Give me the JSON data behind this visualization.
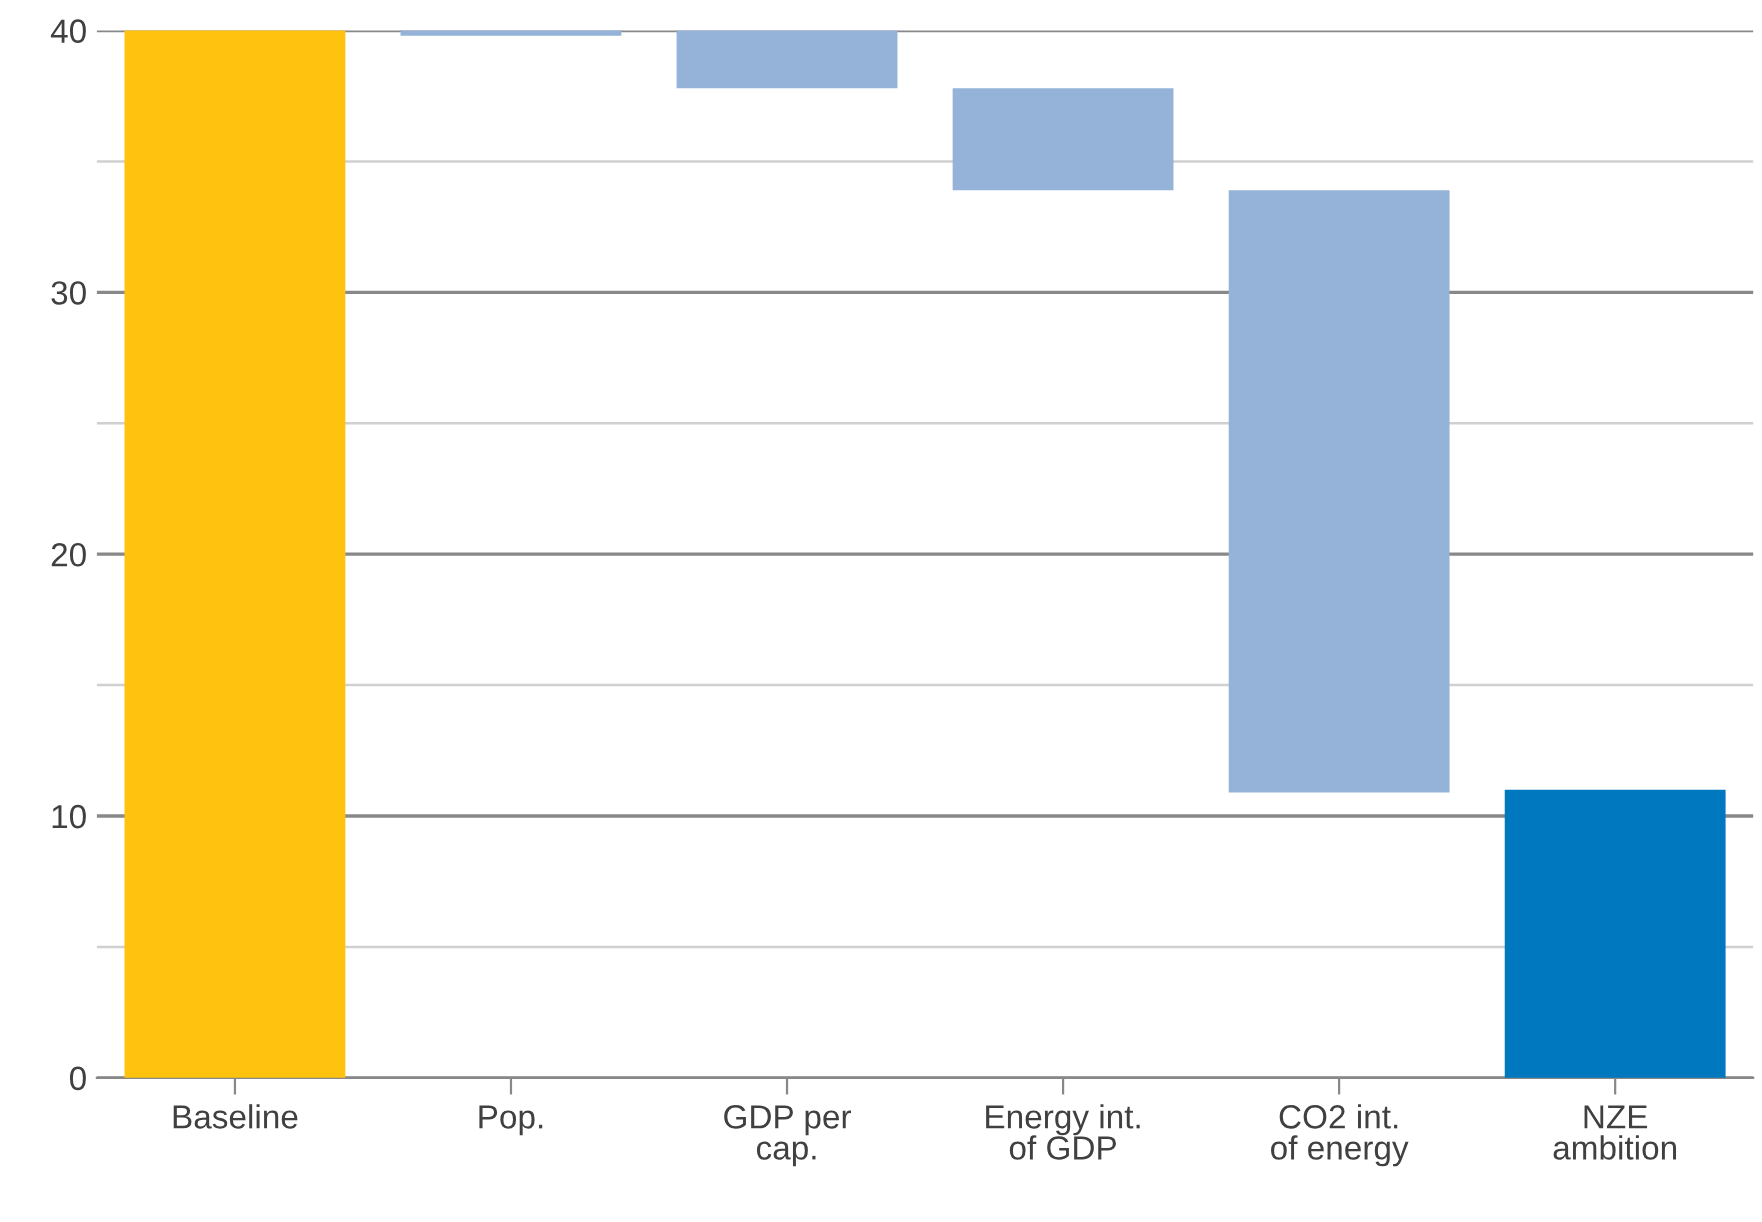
{
  "chart_data": {
    "type": "bar",
    "categories": [
      "Baseline",
      "Pop.",
      "GDP per\ncap.",
      "Energy int.\nof GDP",
      "CO2 int.\nof energy",
      "NZE\nambition"
    ],
    "values": [
      40,
      -0.2,
      -2.2,
      -3.9,
      -23.0,
      11.0
    ],
    "base": [
      0,
      40,
      40,
      37.8,
      33.9,
      0
    ],
    "colors": [
      "#ffc20e",
      "#95b3d8",
      "#95b3d8",
      "#95b3d8",
      "#95b3d8",
      "#0078c0"
    ],
    "ylim": [
      0,
      40
    ],
    "yticks": [
      0,
      {
        "value": 5,
        "label": null
      },
      10,
      {
        "value": 15,
        "label": null
      },
      20,
      {
        "value": 25,
        "label": null
      },
      30,
      {
        "value": 35,
        "label": null
      },
      40
    ],
    "grid": "y",
    "legend": false
  }
}
